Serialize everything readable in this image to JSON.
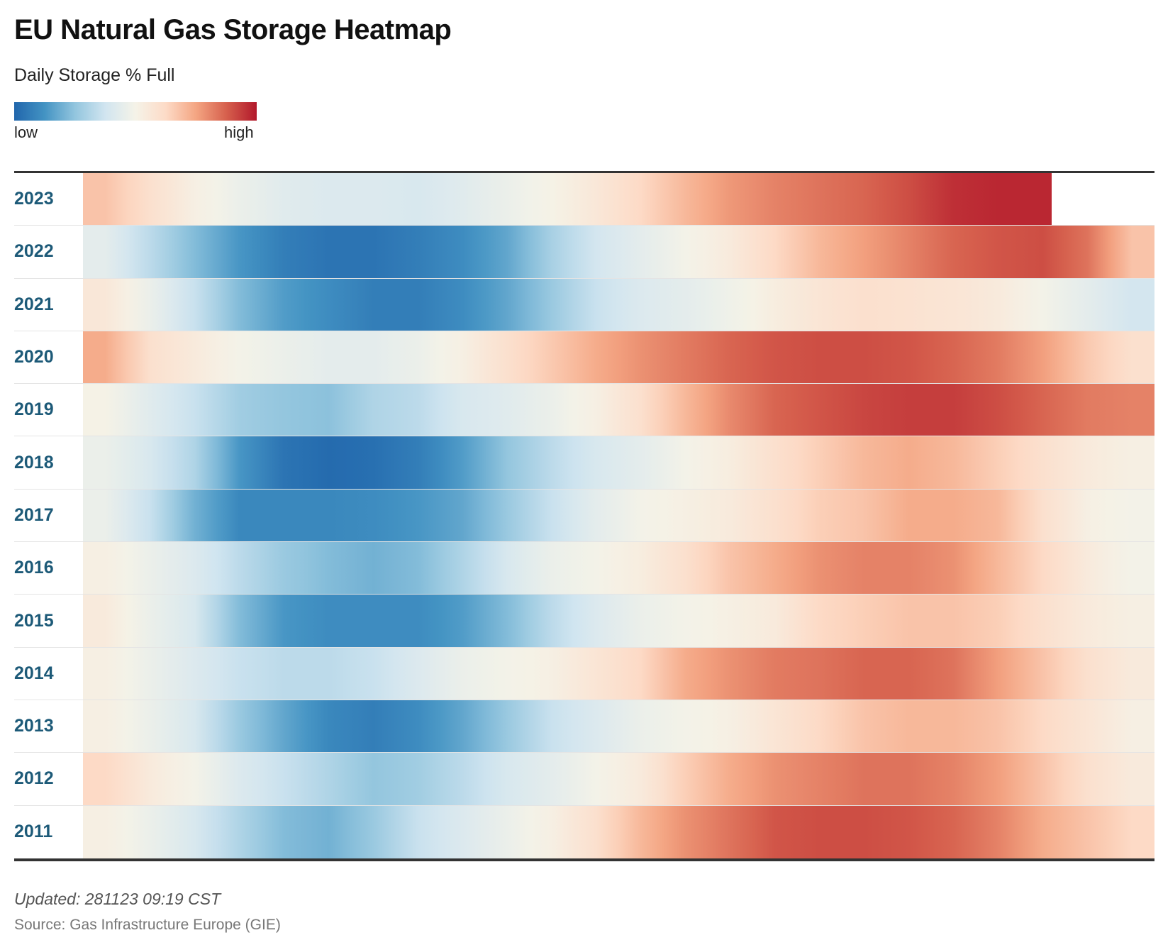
{
  "title": "EU Natural Gas Storage Heatmap",
  "subtitle": "Daily Storage % Full",
  "legend": {
    "low": "low",
    "high": "high",
    "colors": [
      "#2166ac",
      "#4393c3",
      "#92c5de",
      "#d1e5f0",
      "#f5f3e8",
      "#fddbc7",
      "#f4a582",
      "#d6604d",
      "#b2182b"
    ]
  },
  "footer": {
    "updated": "Updated: 281123 09:19 CST",
    "source": "Source: Gas Infrastructure Europe (GIE)"
  },
  "chart_data": {
    "type": "heatmap",
    "title": "EU Natural Gas Storage Heatmap",
    "value_label": "Daily Storage % Full",
    "color_domain": [
      25,
      100
    ],
    "x": "day of year (half-month samples, Jan to Dec)",
    "rows": [
      {
        "year": "2023",
        "values": [
          76,
          70,
          64,
          60,
          57,
          56,
          56,
          55,
          57,
          60,
          63,
          67,
          72,
          78,
          83,
          86,
          88,
          90,
          93,
          97,
          98,
          98
        ]
      },
      {
        "year": "2022",
        "values": [
          58,
          50,
          42,
          35,
          30,
          28,
          28,
          30,
          33,
          38,
          47,
          54,
          58,
          62,
          66,
          72,
          78,
          82,
          86,
          90,
          92,
          93,
          88,
          76
        ]
      },
      {
        "year": "2021",
        "values": [
          67,
          60,
          52,
          42,
          36,
          33,
          30,
          30,
          33,
          38,
          45,
          52,
          56,
          58,
          61,
          65,
          68,
          70,
          69,
          68,
          66,
          62,
          58,
          54
        ]
      },
      {
        "year": "2020",
        "values": [
          80,
          70,
          66,
          62,
          60,
          58,
          58,
          60,
          64,
          70,
          75,
          80,
          84,
          87,
          90,
          92,
          93,
          93,
          92,
          90,
          87,
          82,
          75,
          70
        ]
      },
      {
        "year": "2019",
        "values": [
          63,
          57,
          52,
          46,
          44,
          43,
          48,
          50,
          55,
          57,
          60,
          64,
          70,
          78,
          85,
          90,
          92,
          94,
          95,
          95,
          93,
          90,
          87,
          86
        ]
      },
      {
        "year": "2018",
        "values": [
          60,
          55,
          48,
          35,
          28,
          26,
          27,
          30,
          36,
          44,
          50,
          55,
          58,
          62,
          65,
          70,
          74,
          78,
          80,
          78,
          74,
          70,
          66,
          64
        ]
      },
      {
        "year": "2017",
        "values": [
          60,
          52,
          40,
          32,
          32,
          32,
          33,
          35,
          38,
          45,
          52,
          58,
          62,
          64,
          66,
          70,
          74,
          76,
          80,
          80,
          78,
          70,
          64,
          62
        ]
      },
      {
        "year": "2016",
        "values": [
          64,
          60,
          56,
          50,
          45,
          42,
          40,
          42,
          48,
          55,
          60,
          62,
          65,
          70,
          76,
          80,
          84,
          86,
          86,
          84,
          78,
          72,
          66,
          62
        ]
      },
      {
        "year": "2015",
        "values": [
          66,
          60,
          55,
          42,
          35,
          33,
          33,
          33,
          36,
          42,
          50,
          56,
          60,
          62,
          64,
          66,
          72,
          74,
          76,
          76,
          74,
          70,
          66,
          64
        ]
      },
      {
        "year": "2014",
        "values": [
          64,
          60,
          56,
          52,
          50,
          50,
          52,
          56,
          60,
          62,
          64,
          68,
          72,
          80,
          84,
          87,
          88,
          90,
          90,
          88,
          82,
          76,
          70,
          66
        ]
      },
      {
        "year": "2013",
        "values": [
          64,
          60,
          55,
          45,
          38,
          32,
          30,
          33,
          38,
          45,
          52,
          56,
          60,
          62,
          64,
          68,
          72,
          76,
          78,
          78,
          76,
          72,
          68,
          64
        ]
      },
      {
        "year": "2012",
        "values": [
          72,
          66,
          62,
          56,
          52,
          48,
          44,
          46,
          50,
          55,
          58,
          62,
          66,
          74,
          80,
          84,
          86,
          88,
          88,
          86,
          82,
          76,
          70,
          66
        ]
      },
      {
        "year": "2011",
        "values": [
          64,
          60,
          55,
          48,
          42,
          40,
          45,
          52,
          56,
          60,
          64,
          70,
          78,
          84,
          88,
          92,
          93,
          93,
          92,
          90,
          86,
          80,
          76,
          72
        ]
      }
    ]
  }
}
